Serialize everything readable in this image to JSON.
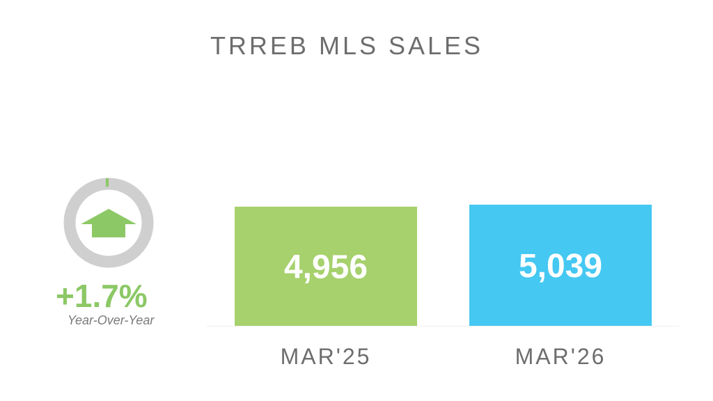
{
  "title": "TRREB MLS SALES",
  "yoy": {
    "change": "+1.7%",
    "label": "Year-Over-Year",
    "direction_icon": "up-arrow-icon",
    "color": "#8cc866",
    "ring_color": "#cfcfcf"
  },
  "chart_data": {
    "type": "bar",
    "categories": [
      "MAR'25",
      "MAR'26"
    ],
    "values": [
      4956,
      5039
    ],
    "data_labels": [
      "4,956",
      "5,039"
    ],
    "colors": [
      "#a6d16d",
      "#45c8f2"
    ],
    "title": "TRREB MLS SALES",
    "xlabel": "",
    "ylabel": "",
    "ylim": [
      0,
      5039
    ],
    "grid": false,
    "legend": "none"
  }
}
